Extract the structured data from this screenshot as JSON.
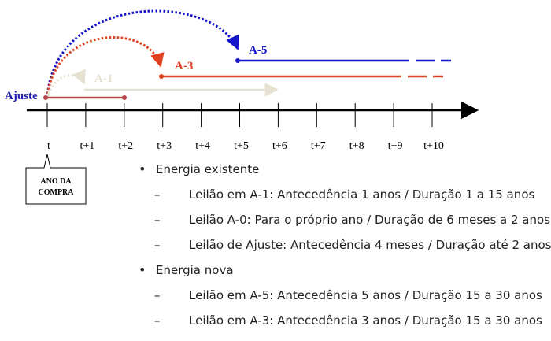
{
  "timeline": {
    "ticks": [
      "t",
      "t+1",
      "t+2",
      "t+3",
      "t+4",
      "t+5",
      "t+6",
      "t+7",
      "t+8",
      "t+9",
      "t+10"
    ],
    "start_label": "Ajuste",
    "callout": {
      "line1": "ANO DA",
      "line2": "COMPRA"
    }
  },
  "arrows": [
    {
      "id": "a5",
      "label": "A-5",
      "color": "#1414c8"
    },
    {
      "id": "a3",
      "label": "A-3",
      "color": "#e0401e"
    },
    {
      "id": "a1",
      "label": "A-1",
      "color": "#e6e2d2"
    },
    {
      "id": "ajuste",
      "label": "Ajuste",
      "color": "#b4464a"
    }
  ],
  "bullets": [
    {
      "level": 1,
      "text": "Energia existente"
    },
    {
      "level": 2,
      "text": "Leilão em A-1: Antecedência 1 anos / Duração 1 a 15 anos"
    },
    {
      "level": 2,
      "text": "Leilão A-0: Para o próprio ano / Duração de 6 meses a 2 anos"
    },
    {
      "level": 2,
      "text": "Leilão de Ajuste: Antecedência 4 meses / Duração até 2 anos"
    },
    {
      "level": 1,
      "text": "Energia nova"
    },
    {
      "level": 2,
      "text": "Leilão em A-5: Antecedência 5 anos / Duração 15 a 30 anos"
    },
    {
      "level": 2,
      "text": "Leilão em A-3: Antecedência 3 anos / Duração 15 a 30 anos"
    }
  ]
}
